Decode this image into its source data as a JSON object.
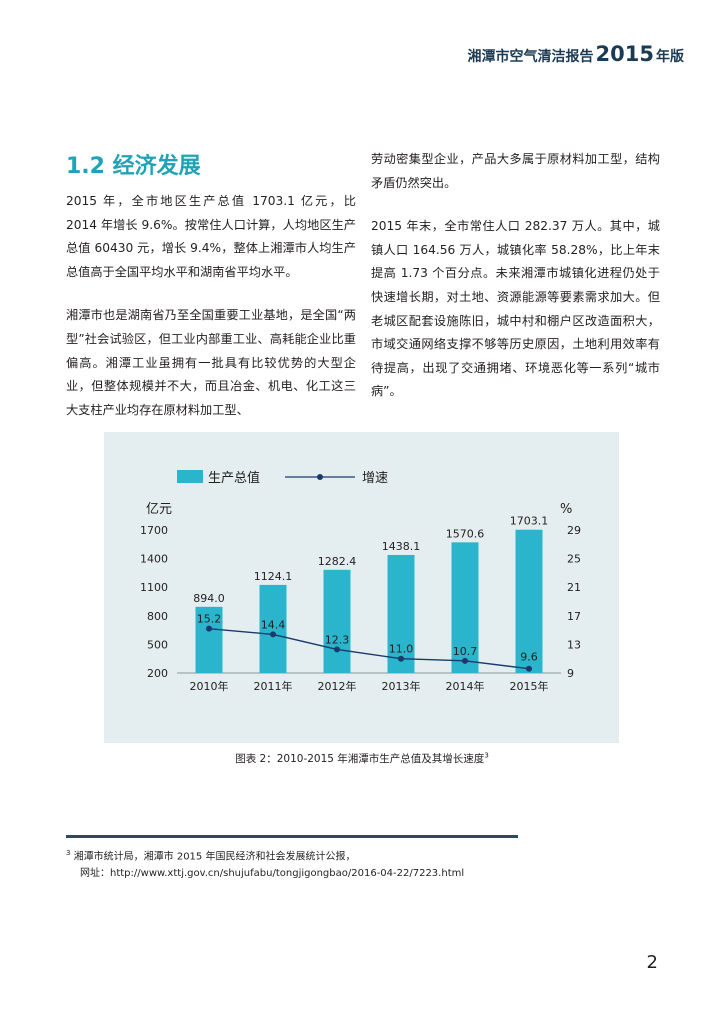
{
  "header": {
    "title_prefix": "湘潭市空气清洁报告",
    "year": "2015",
    "title_suffix": "年版"
  },
  "section": {
    "title": "1.2 经济发展"
  },
  "left_column": {
    "paragraphs": [
      "2015 年，全市地区生产总值 1703.1 亿元，比 2014 年增长 9.6%。按常住人口计算，人均地区生产总值 60430 元，增长 9.4%，整体上湘潭市人均生产总值高于全国平均水平和湖南省平均水平。",
      "湘潭市也是湖南省乃至全国重要工业基地，是全国“两型”社会试验区，但工业内部重工业、高耗能企业比重偏高。湘潭工业虽拥有一批具有比较优势的大型企业，但整体规模并不大，而且冶金、机电、化工这三大支柱产业均存在原材料加工型、"
    ]
  },
  "right_column": {
    "paragraphs": [
      "劳动密集型企业，产品大多属于原材料加工型，结构矛盾仍然突出。",
      "2015 年末，全市常住人口 282.37 万人。其中，城镇人口 164.56 万人，城镇化率 58.28%，比上年末提高 1.73 个百分点。未来湘潭市城镇化进程仍处于快速增长期，对土地、资源能源等要素需求加大。但老城区配套设施陈旧，城中村和棚户区改造面积大，市域交通网络支撑不够等历史原因，土地利用效率有待提高，出现了交通拥堵、环境恶化等一系列“城市病”。"
    ]
  },
  "chart_data": {
    "type": "bar",
    "title": "",
    "categories": [
      "2010年",
      "2011年",
      "2012年",
      "2013年",
      "2014年",
      "2015年"
    ],
    "series": [
      {
        "name": "生产总值",
        "type": "bar",
        "axis": "left",
        "values": [
          894.0,
          1124.1,
          1282.4,
          1438.1,
          1570.6,
          1703.1
        ],
        "labels": [
          "894.0",
          "1124.1",
          "1282.4",
          "1438.1",
          "1570.6",
          "1703.1"
        ]
      },
      {
        "name": "增速",
        "type": "line",
        "axis": "right",
        "values": [
          15.2,
          14.4,
          12.3,
          11.0,
          10.7,
          9.6
        ],
        "labels": [
          "15.2",
          "14.4",
          "12.3",
          "11.0",
          "10.7",
          "9.6"
        ]
      }
    ],
    "ylabel": "亿元",
    "y2label": "%",
    "ylim": [
      200,
      1700
    ],
    "y2lim": [
      9,
      29
    ],
    "yticks": [
      "200",
      "500",
      "800",
      "1100",
      "1400",
      "1700"
    ],
    "y2ticks": [
      "9",
      "13",
      "17",
      "21",
      "25",
      "29"
    ],
    "ytick_values": [
      200,
      500,
      800,
      1100,
      1400,
      1700
    ],
    "y2tick_values": [
      9,
      13,
      17,
      21,
      25,
      29
    ],
    "legend_position": "top-left",
    "colors": {
      "bar": "#2bb5cc",
      "line": "#1b3a6b",
      "background": "#e4eef0"
    }
  },
  "caption": {
    "text": "图表 2：2010-2015 年湘潭市生产总值及其增长速度",
    "ref": "3"
  },
  "footnote": {
    "number": "3",
    "line1": "湘潭市统计局，湘潭市 2015 年国民经济和社会发展统计公报，",
    "line2": "网址：http://www.xttj.gov.cn/shujufabu/tongjigongbao/2016-04-22/7223.html"
  },
  "page_number": "2"
}
